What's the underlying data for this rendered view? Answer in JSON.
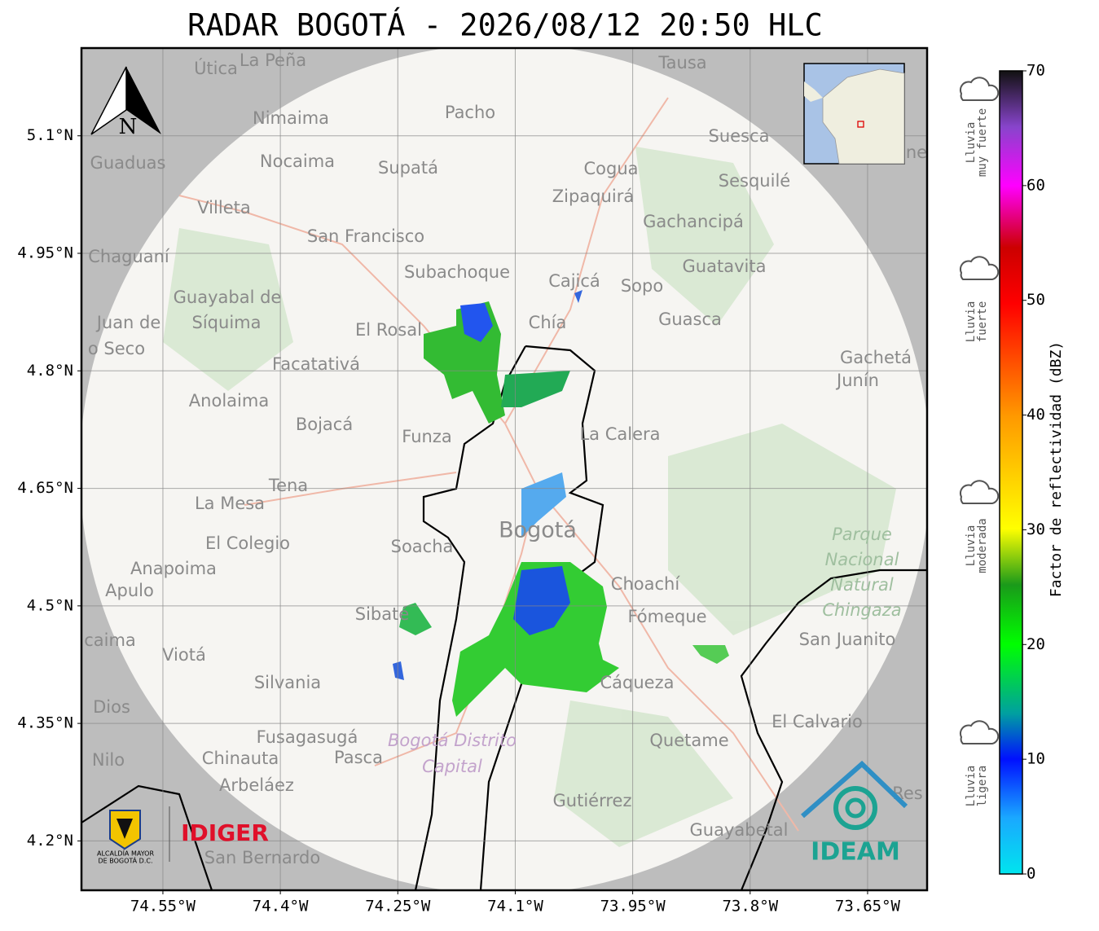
{
  "title": "RADAR BOGOTÁ - 2026/08/12 20:50 HLC",
  "map": {
    "xlim": [
      -74.654,
      -73.574
    ],
    "ylim": [
      4.137,
      5.212
    ],
    "xticks": [
      {
        "value": -74.55,
        "label": "74.55°W"
      },
      {
        "value": -74.4,
        "label": "74.4°W"
      },
      {
        "value": -74.25,
        "label": "74.25°W"
      },
      {
        "value": -74.1,
        "label": "74.1°W"
      },
      {
        "value": -73.95,
        "label": "73.95°W"
      },
      {
        "value": -73.8,
        "label": "73.8°W"
      },
      {
        "value": -73.65,
        "label": "73.65°W"
      }
    ],
    "yticks": [
      {
        "value": 5.1,
        "label": "5.1°N"
      },
      {
        "value": 4.95,
        "label": "4.95°N"
      },
      {
        "value": 4.8,
        "label": "4.8°N"
      },
      {
        "value": 4.65,
        "label": "4.65°N"
      },
      {
        "value": 4.5,
        "label": "4.5°N"
      },
      {
        "value": 4.35,
        "label": "4.35°N"
      },
      {
        "value": 4.2,
        "label": "4.2°N"
      }
    ],
    "grid": true,
    "north": "N",
    "places": [
      "Útica",
      "La Peña",
      "Tausa",
      "Pacho",
      "Nimaima",
      "Suesca",
      "Guaduas",
      "Nocaima",
      "Supatá",
      "Cogua",
      "Sesquilé",
      "Zipaquirá",
      "Villeta",
      "Gachancipá",
      "San Francisco",
      "Chaguaní",
      "Guatavita",
      "Subachoque",
      "Cajicá",
      "Sopo",
      "Guayabal de",
      "Síquima",
      "Juan de",
      "Guasca",
      "El Rosal",
      "Chía",
      "o Seco",
      "Gachetá",
      "Facatativá",
      "Junín",
      "Anolaima",
      "Bojacá",
      "Funza",
      "La Calera",
      "Tena",
      "La Mesa",
      "Bogotá",
      "El Colegio",
      "Soacha",
      "Anapoima",
      "Apulo",
      "Choachí",
      "Sibaté",
      "Fómeque",
      "San Juanito",
      "caima",
      "Viotá",
      "Silvania",
      "Cáqueza",
      "Dios",
      "El Calvario",
      "Fusagasugá",
      "Quetame",
      "Nilo",
      "Chinauta",
      "Pasca",
      "Arbeláez",
      "Gutiérrez",
      "Res",
      "Guayabetal",
      "San Bernardo",
      "ne"
    ],
    "protected_area": [
      "Parque",
      "Nacional",
      "Natural",
      "Chingaza"
    ],
    "district": [
      "Bogotá Distrito",
      "Capital"
    ]
  },
  "colorbar": {
    "label": "Factor de reflectividad (dBZ)",
    "lim": [
      0,
      70
    ],
    "ticks": [
      0,
      10,
      20,
      30,
      40,
      50,
      60,
      70
    ]
  },
  "legend": [
    [
      "Lluvia",
      "muy fuerte"
    ],
    [
      "Lluvia",
      "fuerte"
    ],
    [
      "Lluvia",
      "moderada"
    ],
    [
      "Lluvia",
      "ligera"
    ]
  ],
  "logos": {
    "idiger": "IDIGER",
    "alcaldia": [
      "ALCALDÍA MAYOR",
      "DE BOGOTÁ D.C."
    ],
    "ideam": "IDEAM"
  }
}
